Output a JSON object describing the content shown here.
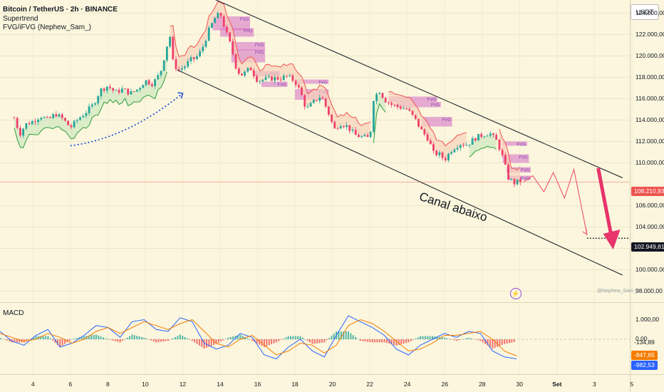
{
  "header": {
    "title": "Bitcoin / TetherUS · 2h · BINANCE",
    "indicator_1": "Supertrend",
    "indicator_2": "FVG/iFVG (Nephew_Sam_)",
    "currency": "USDT"
  },
  "annotation": {
    "text": "Canal abaixo"
  },
  "watermark": "@Nephew_Sam_",
  "macd_panel": {
    "title": "MACD"
  },
  "chart_data": [
    {
      "type": "candlestick",
      "title": "Bitcoin / TetherUS · 2h · BINANCE",
      "x_ticks": [
        "4",
        "6",
        "8",
        "10",
        "12",
        "14",
        "16",
        "18",
        "20",
        "22",
        "24",
        "26",
        "28",
        "30",
        "Set",
        "3",
        "5"
      ],
      "y_ticks": [
        "124.000,00",
        "122.000,00",
        "120.000,00",
        "118.000,00",
        "116.000,00",
        "114.000,00",
        "112.000,00",
        "110.000,00",
        "106.000,00",
        "104.000,00",
        "102.000,00",
        "100.000,00",
        "98.000,00"
      ],
      "ylim": [
        98000,
        124000
      ],
      "current_price": {
        "label": "108.210,93",
        "value": 108210.93
      },
      "target_price": {
        "label": "102.949,81",
        "value": 102949.81
      },
      "fvg_label": "FVG",
      "close_path": [
        {
          "day": 3.0,
          "price": 114200
        },
        {
          "day": 3.3,
          "price": 112700
        },
        {
          "day": 3.6,
          "price": 113600
        },
        {
          "day": 4.0,
          "price": 113900
        },
        {
          "day": 4.4,
          "price": 114400
        },
        {
          "day": 4.8,
          "price": 114000
        },
        {
          "day": 5.2,
          "price": 114600
        },
        {
          "day": 5.6,
          "price": 114100
        },
        {
          "day": 6.0,
          "price": 113300
        },
        {
          "day": 6.4,
          "price": 114100
        },
        {
          "day": 6.8,
          "price": 114700
        },
        {
          "day": 7.2,
          "price": 115400
        },
        {
          "day": 7.6,
          "price": 116800
        },
        {
          "day": 8.0,
          "price": 117200
        },
        {
          "day": 8.4,
          "price": 116600
        },
        {
          "day": 8.8,
          "price": 116900
        },
        {
          "day": 9.2,
          "price": 116500
        },
        {
          "day": 9.6,
          "price": 116900
        },
        {
          "day": 10.0,
          "price": 117700
        },
        {
          "day": 10.4,
          "price": 117400
        },
        {
          "day": 10.8,
          "price": 118400
        },
        {
          "day": 11.1,
          "price": 120500
        },
        {
          "day": 11.3,
          "price": 122100
        },
        {
          "day": 11.5,
          "price": 119200
        },
        {
          "day": 11.8,
          "price": 118700
        },
        {
          "day": 12.1,
          "price": 119000
        },
        {
          "day": 12.4,
          "price": 119600
        },
        {
          "day": 12.7,
          "price": 119800
        },
        {
          "day": 13.0,
          "price": 120500
        },
        {
          "day": 13.4,
          "price": 122400
        },
        {
          "day": 13.7,
          "price": 123500
        },
        {
          "day": 14.0,
          "price": 124000
        },
        {
          "day": 14.3,
          "price": 122300
        },
        {
          "day": 14.6,
          "price": 120800
        },
        {
          "day": 14.9,
          "price": 118600
        },
        {
          "day": 15.2,
          "price": 118200
        },
        {
          "day": 15.6,
          "price": 118900
        },
        {
          "day": 16.0,
          "price": 117700
        },
        {
          "day": 16.4,
          "price": 117800
        },
        {
          "day": 16.8,
          "price": 117900
        },
        {
          "day": 17.2,
          "price": 117900
        },
        {
          "day": 17.6,
          "price": 118100
        },
        {
          "day": 18.0,
          "price": 117600
        },
        {
          "day": 18.3,
          "price": 116600
        },
        {
          "day": 18.6,
          "price": 115000
        },
        {
          "day": 19.0,
          "price": 115700
        },
        {
          "day": 19.4,
          "price": 116300
        },
        {
          "day": 19.8,
          "price": 114600
        },
        {
          "day": 20.1,
          "price": 113100
        },
        {
          "day": 20.4,
          "price": 113700
        },
        {
          "day": 20.8,
          "price": 113400
        },
        {
          "day": 21.2,
          "price": 112600
        },
        {
          "day": 21.6,
          "price": 112400
        },
        {
          "day": 22.0,
          "price": 112300
        },
        {
          "day": 22.2,
          "price": 116000
        },
        {
          "day": 22.5,
          "price": 116800
        },
        {
          "day": 22.8,
          "price": 115900
        },
        {
          "day": 23.2,
          "price": 115400
        },
        {
          "day": 23.6,
          "price": 115200
        },
        {
          "day": 24.0,
          "price": 115000
        },
        {
          "day": 24.4,
          "price": 114100
        },
        {
          "day": 24.8,
          "price": 112900
        },
        {
          "day": 25.1,
          "price": 112300
        },
        {
          "day": 25.4,
          "price": 110900
        },
        {
          "day": 25.7,
          "price": 110800
        },
        {
          "day": 26.0,
          "price": 110300
        },
        {
          "day": 26.4,
          "price": 111300
        },
        {
          "day": 26.8,
          "price": 111800
        },
        {
          "day": 27.2,
          "price": 111700
        },
        {
          "day": 27.6,
          "price": 112300
        },
        {
          "day": 28.0,
          "price": 112600
        },
        {
          "day": 28.4,
          "price": 112800
        },
        {
          "day": 28.8,
          "price": 112000
        },
        {
          "day": 29.1,
          "price": 110500
        },
        {
          "day": 29.4,
          "price": 108600
        },
        {
          "day": 29.7,
          "price": 108100
        },
        {
          "day": 30.0,
          "price": 108300
        },
        {
          "day": 30.2,
          "price": 108200
        }
      ],
      "channel_upper": [
        {
          "day": 12.0,
          "price": 126600
        },
        {
          "day": 35.5,
          "price": 108600
        }
      ],
      "channel_lower": [
        {
          "day": 11.7,
          "price": 118700
        },
        {
          "day": 35.5,
          "price": 99500
        }
      ],
      "projection": [
        {
          "day": 30.2,
          "price": 108200
        },
        {
          "day": 30.7,
          "price": 108800
        },
        {
          "day": 31.3,
          "price": 107300
        },
        {
          "day": 31.8,
          "price": 109100
        },
        {
          "day": 32.4,
          "price": 106700
        },
        {
          "day": 32.9,
          "price": 109400
        },
        {
          "day": 33.6,
          "price": 103300
        }
      ],
      "big_arrow": [
        {
          "day": 34.2,
          "price": 109500
        },
        {
          "day": 35.0,
          "price": 101900
        }
      ],
      "blue_arrow": [
        {
          "day": 6.0,
          "price": 111600
        },
        {
          "day": 9.0,
          "price": 112800
        },
        {
          "day": 12.0,
          "price": 116500
        }
      ],
      "fvg_zones": [
        {
          "day0": 13.6,
          "day1": 15.6,
          "p_top": 123700,
          "p_bottom": 122400
        },
        {
          "day0": 14.0,
          "day1": 15.8,
          "p_top": 122600,
          "p_bottom": 121800
        },
        {
          "day0": 14.6,
          "day1": 16.4,
          "p_top": 121300,
          "p_bottom": 120500
        },
        {
          "day0": 14.6,
          "day1": 16.4,
          "p_top": 120600,
          "p_bottom": 119400
        },
        {
          "day0": 15.8,
          "day1": 17.2,
          "p_top": 118600,
          "p_bottom": 118100
        },
        {
          "day0": 16.2,
          "day1": 17.6,
          "p_top": 117600,
          "p_bottom": 117100
        },
        {
          "day0": 18.0,
          "day1": 19.8,
          "p_top": 117800,
          "p_bottom": 117400
        },
        {
          "day0": 18.0,
          "day1": 19.8,
          "p_top": 116900,
          "p_bottom": 115900
        },
        {
          "day0": 23.0,
          "day1": 25.6,
          "p_top": 116200,
          "p_bottom": 115700
        },
        {
          "day0": 23.4,
          "day1": 25.8,
          "p_top": 115700,
          "p_bottom": 115200
        },
        {
          "day0": 24.8,
          "day1": 26.4,
          "p_top": 114300,
          "p_bottom": 113400
        },
        {
          "day0": 29.1,
          "day1": 30.4,
          "p_top": 112000,
          "p_bottom": 111600
        },
        {
          "day0": 29.1,
          "day1": 30.5,
          "p_top": 110800,
          "p_bottom": 110000
        },
        {
          "day0": 29.3,
          "day1": 30.6,
          "p_top": 109600,
          "p_bottom": 109100
        },
        {
          "day0": 29.4,
          "day1": 30.6,
          "p_top": 108800,
          "p_bottom": 108400
        }
      ]
    },
    {
      "type": "line",
      "title": "MACD",
      "y_ticks": [
        "1.000,00",
        "0,00",
        "-134,89",
        "-847,65",
        "-982,53"
      ],
      "ylim": [
        -1300,
        1500
      ],
      "current_values": {
        "histogram": "-134,89",
        "signal": "-847,65",
        "macd": "-982,53"
      },
      "series": [
        {
          "name": "MACD",
          "color": "#2962ff",
          "values": [
            400,
            -100,
            -300,
            200,
            500,
            -400,
            -200,
            200,
            700,
            600,
            100,
            900,
            1000,
            500,
            400,
            1100,
            900,
            -200,
            -500,
            -300,
            300,
            100,
            -800,
            -1000,
            -400,
            0,
            -600,
            -900,
            200,
            1200,
            900,
            600,
            200,
            -500,
            -800,
            -300,
            0,
            300,
            100,
            400,
            300,
            -600,
            -900,
            -1000
          ]
        },
        {
          "name": "Signal",
          "color": "#f57c00",
          "values": [
            300,
            100,
            -100,
            0,
            300,
            100,
            -200,
            0,
            400,
            600,
            300,
            600,
            900,
            700,
            500,
            800,
            1000,
            400,
            -200,
            -400,
            0,
            200,
            -300,
            -800,
            -600,
            -200,
            -300,
            -700,
            -300,
            700,
            1000,
            800,
            400,
            -100,
            -600,
            -500,
            -200,
            200,
            200,
            300,
            400,
            0,
            -600,
            -850
          ]
        }
      ]
    }
  ]
}
